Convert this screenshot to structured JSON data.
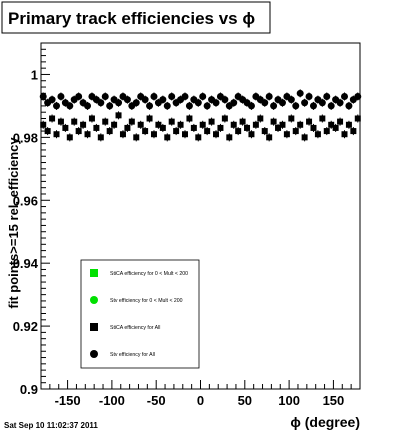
{
  "chart_data": {
    "type": "scatter",
    "title": "Primary track efficiencies vs ϕ",
    "xlabel": "ϕ (degree)",
    "ylabel": "fit points>=15 rel. efficiency",
    "xlim": [
      -180,
      180
    ],
    "ylim": [
      0.9,
      1.01
    ],
    "x_ticks": [
      -150,
      -100,
      -50,
      0,
      50,
      100,
      150
    ],
    "y_ticks": [
      0.9,
      0.92,
      0.94,
      0.96,
      0.98,
      1
    ],
    "y_tick_labels": [
      "0.9",
      "0.92",
      "0.94",
      "0.96",
      "0.98",
      "1"
    ],
    "grid": false,
    "legend_position": "bottom-left",
    "series": [
      {
        "name": "StiCA efficiency  for 0 < Mult < 200",
        "marker": "square",
        "color": "#00e000",
        "values": []
      },
      {
        "name": "Stv efficiency  for 0 < Mult < 200",
        "marker": "circle",
        "color": "#00e000",
        "values": []
      },
      {
        "name": "StiCA efficiency  for All",
        "marker": "square",
        "color": "#000000",
        "x": [
          -177.5,
          -172.5,
          -167.5,
          -162.5,
          -157.5,
          -152.5,
          -147.5,
          -142.5,
          -137.5,
          -132.5,
          -127.5,
          -122.5,
          -117.5,
          -112.5,
          -107.5,
          -102.5,
          -97.5,
          -92.5,
          -87.5,
          -82.5,
          -77.5,
          -72.5,
          -67.5,
          -62.5,
          -57.5,
          -52.5,
          -47.5,
          -42.5,
          -37.5,
          -32.5,
          -27.5,
          -22.5,
          -17.5,
          -12.5,
          -7.5,
          -2.5,
          2.5,
          7.5,
          12.5,
          17.5,
          22.5,
          27.5,
          32.5,
          37.5,
          42.5,
          47.5,
          52.5,
          57.5,
          62.5,
          67.5,
          72.5,
          77.5,
          82.5,
          87.5,
          92.5,
          97.5,
          102.5,
          107.5,
          112.5,
          117.5,
          122.5,
          127.5,
          132.5,
          137.5,
          142.5,
          147.5,
          152.5,
          157.5,
          162.5,
          167.5,
          172.5,
          177.5
        ],
        "values": [
          0.984,
          0.982,
          0.986,
          0.981,
          0.985,
          0.983,
          0.98,
          0.985,
          0.982,
          0.984,
          0.981,
          0.986,
          0.983,
          0.98,
          0.985,
          0.982,
          0.984,
          0.987,
          0.981,
          0.983,
          0.985,
          0.98,
          0.984,
          0.982,
          0.986,
          0.981,
          0.984,
          0.983,
          0.98,
          0.985,
          0.982,
          0.984,
          0.981,
          0.986,
          0.983,
          0.98,
          0.984,
          0.982,
          0.985,
          0.981,
          0.983,
          0.986,
          0.98,
          0.984,
          0.982,
          0.985,
          0.983,
          0.981,
          0.984,
          0.986,
          0.982,
          0.98,
          0.985,
          0.983,
          0.984,
          0.981,
          0.986,
          0.982,
          0.984,
          0.98,
          0.985,
          0.983,
          0.981,
          0.986,
          0.982,
          0.984,
          0.983,
          0.985,
          0.981,
          0.984,
          0.982,
          0.986
        ]
      },
      {
        "name": "Stv efficiency  for All",
        "marker": "circle",
        "color": "#000000",
        "x": [
          -177.5,
          -172.5,
          -167.5,
          -162.5,
          -157.5,
          -152.5,
          -147.5,
          -142.5,
          -137.5,
          -132.5,
          -127.5,
          -122.5,
          -117.5,
          -112.5,
          -107.5,
          -102.5,
          -97.5,
          -92.5,
          -87.5,
          -82.5,
          -77.5,
          -72.5,
          -67.5,
          -62.5,
          -57.5,
          -52.5,
          -47.5,
          -42.5,
          -37.5,
          -32.5,
          -27.5,
          -22.5,
          -17.5,
          -12.5,
          -7.5,
          -2.5,
          2.5,
          7.5,
          12.5,
          17.5,
          22.5,
          27.5,
          32.5,
          37.5,
          42.5,
          47.5,
          52.5,
          57.5,
          62.5,
          67.5,
          72.5,
          77.5,
          82.5,
          87.5,
          92.5,
          97.5,
          102.5,
          107.5,
          112.5,
          117.5,
          122.5,
          127.5,
          132.5,
          137.5,
          142.5,
          147.5,
          152.5,
          157.5,
          162.5,
          167.5,
          172.5,
          177.5
        ],
        "values": [
          0.993,
          0.991,
          0.992,
          0.99,
          0.993,
          0.991,
          0.99,
          0.992,
          0.993,
          0.991,
          0.99,
          0.993,
          0.992,
          0.991,
          0.993,
          0.99,
          0.992,
          0.991,
          0.993,
          0.992,
          0.99,
          0.991,
          0.993,
          0.992,
          0.99,
          0.993,
          0.991,
          0.992,
          0.99,
          0.993,
          0.991,
          0.992,
          0.993,
          0.99,
          0.992,
          0.991,
          0.993,
          0.99,
          0.992,
          0.991,
          0.993,
          0.992,
          0.99,
          0.991,
          0.993,
          0.992,
          0.991,
          0.99,
          0.993,
          0.992,
          0.991,
          0.993,
          0.99,
          0.992,
          0.991,
          0.993,
          0.992,
          0.99,
          0.994,
          0.991,
          0.993,
          0.99,
          0.992,
          0.991,
          0.993,
          0.99,
          0.992,
          0.991,
          0.993,
          0.99,
          0.992,
          0.993
        ]
      }
    ]
  },
  "footer": {
    "timestamp": "Sat Sep 10 11:02:37 2011"
  },
  "colors": {
    "frame": "#000000",
    "legend_bg": "#ffffff"
  }
}
